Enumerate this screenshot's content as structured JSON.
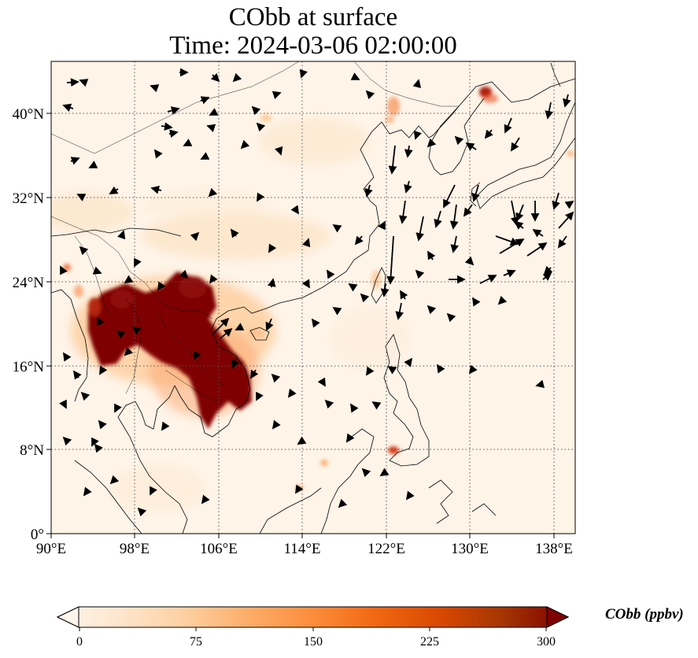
{
  "title_line1": "CObb at surface",
  "title_line2": "Time: 2024-03-06 02:00:00",
  "colorbar": {
    "label": "CObb (ppbv)",
    "ticks": [
      "0",
      "75",
      "150",
      "225",
      "300"
    ],
    "min": 0,
    "max": 300,
    "colors": [
      "#fff5eb",
      "#fee6ce",
      "#fdd0a2",
      "#fdae6b",
      "#fd8d3c",
      "#f16913",
      "#d94801",
      "#a63603",
      "#7f0000"
    ]
  },
  "map": {
    "lon_ticks": [
      "90°E",
      "98°E",
      "106°E",
      "114°E",
      "122°E",
      "130°E",
      "138°E"
    ],
    "lat_ticks": [
      "0°",
      "8°N",
      "16°N",
      "24°N",
      "32°N",
      "40°N"
    ],
    "lon_range": [
      90,
      140
    ],
    "lat_range": [
      0,
      45
    ],
    "gridlines": true
  },
  "plumes": [
    {
      "lon": 101.5,
      "lat": 20.5,
      "value": 300
    },
    {
      "lon": 104.5,
      "lat": 20.5,
      "value": 300
    },
    {
      "lon": 106.5,
      "lat": 16.5,
      "value": 300
    },
    {
      "lon": 98.5,
      "lat": 19.5,
      "value": 280
    },
    {
      "lon": 102.5,
      "lat": 18.0,
      "value": 260
    },
    {
      "lon": 106.0,
      "lat": 13.5,
      "value": 240
    },
    {
      "lon": 131.2,
      "lat": 42.6,
      "value": 220
    },
    {
      "lon": 123.2,
      "lat": 8.0,
      "value": 160
    },
    {
      "lon": 122.3,
      "lat": 40.0,
      "value": 110
    }
  ]
}
